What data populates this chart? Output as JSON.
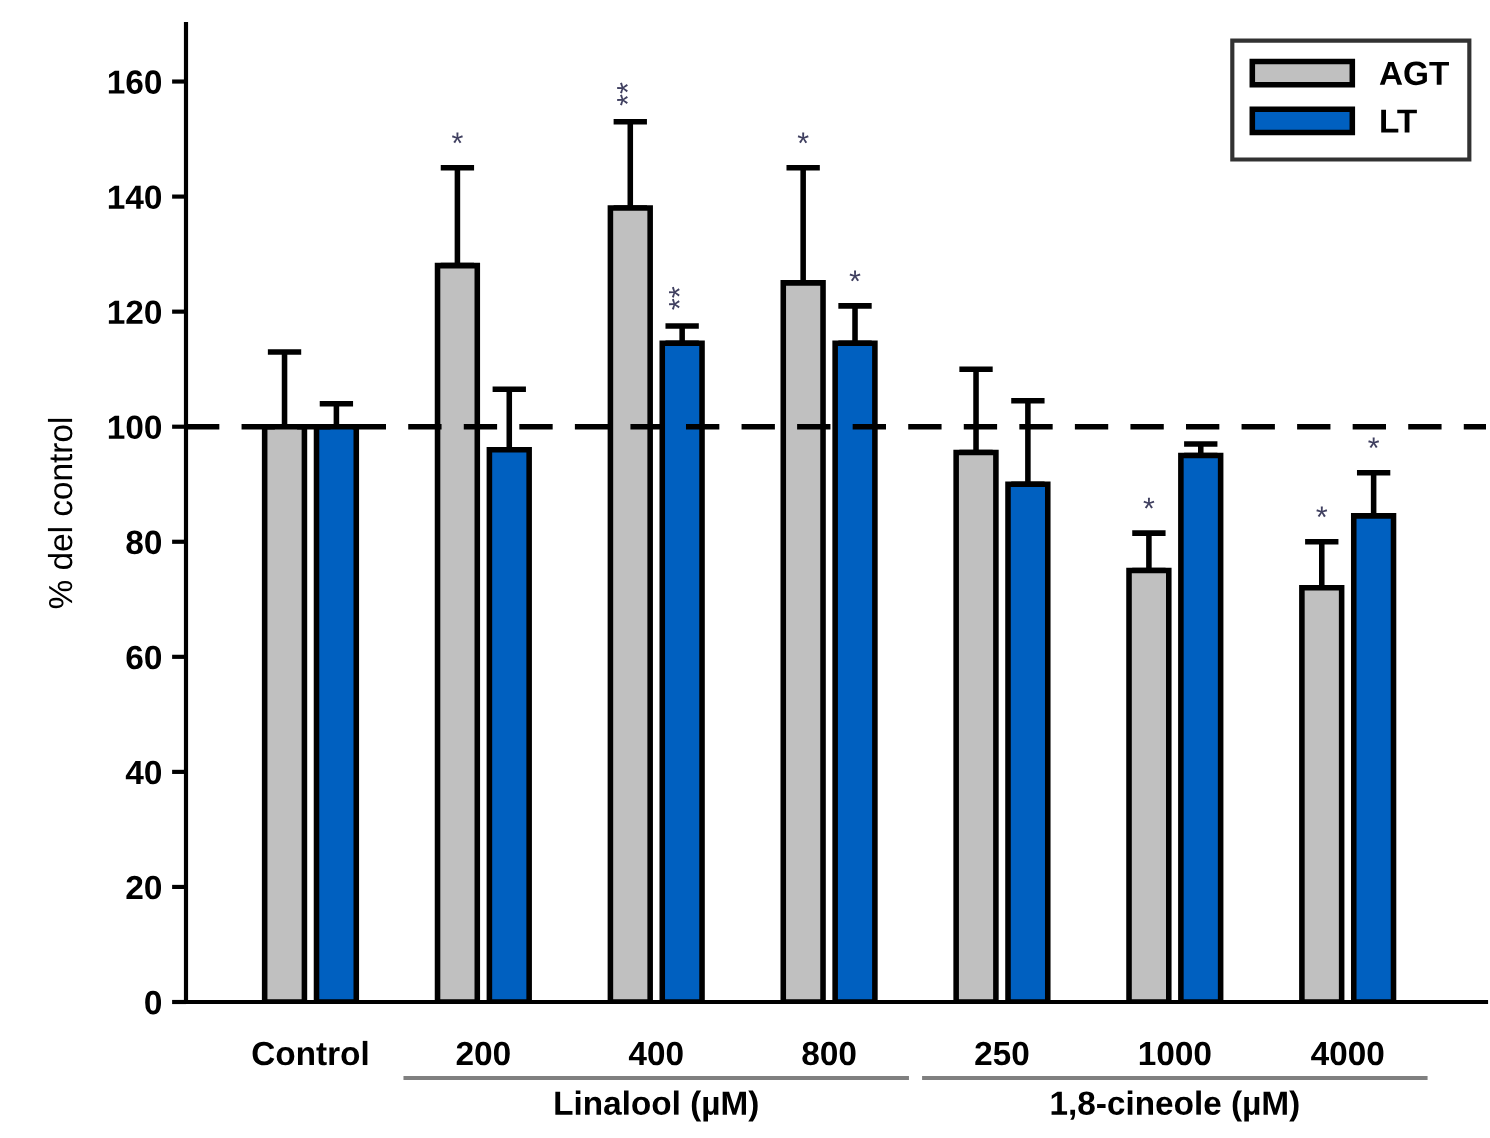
{
  "chart_data": {
    "type": "bar",
    "ylabel": "% del control",
    "categories": [
      "Control",
      "200",
      "400",
      "800",
      "250",
      "1000",
      "4000"
    ],
    "series": [
      {
        "name": "AGT",
        "color": "#c0c0c0",
        "values": [
          100,
          128,
          138,
          125,
          95.5,
          75,
          72
        ],
        "errors": [
          [
            100,
            113
          ],
          [
            128,
            145
          ],
          [
            138,
            153
          ],
          [
            125,
            145
          ],
          [
            95.5,
            110
          ],
          [
            75,
            81.5
          ],
          [
            72,
            80
          ]
        ]
      },
      {
        "name": "LT",
        "color": "#0060c0",
        "values": [
          100,
          96,
          114.5,
          114.5,
          90,
          95,
          84.5
        ],
        "errors": [
          [
            100,
            104
          ],
          [
            96,
            106.5
          ],
          [
            114.5,
            117.5
          ],
          [
            114.5,
            121
          ],
          [
            90,
            104.5
          ],
          [
            95,
            97
          ],
          [
            84.5,
            92
          ]
        ]
      }
    ],
    "ylim": [
      0,
      170
    ],
    "yticks": [
      0,
      20,
      40,
      60,
      80,
      100,
      120,
      140,
      160
    ],
    "ref_lines": [
      {
        "axis": "y",
        "value": 100,
        "line_style": "dashed",
        "color": "#000000"
      }
    ],
    "annotations": [
      {
        "text": "*",
        "x": "200",
        "y": 145
      },
      {
        "text": "**",
        "x": "400",
        "y": 153
      },
      {
        "text": "**",
        "x": "400",
        "y": 117.5
      },
      {
        "text": "*",
        "x": "800",
        "y": 145
      },
      {
        "text": "*",
        "x": "800",
        "y": 121
      },
      {
        "text": "*",
        "x": "1000",
        "y": 81.5
      },
      {
        "text": "*",
        "x": "4000",
        "y": 80
      },
      {
        "text": "*",
        "x": "4000",
        "y": 92
      },
      "Linalool (µM)",
      "1,8-cineole (µM)"
    ],
    "legend": "top right",
    "grid": false
  }
}
